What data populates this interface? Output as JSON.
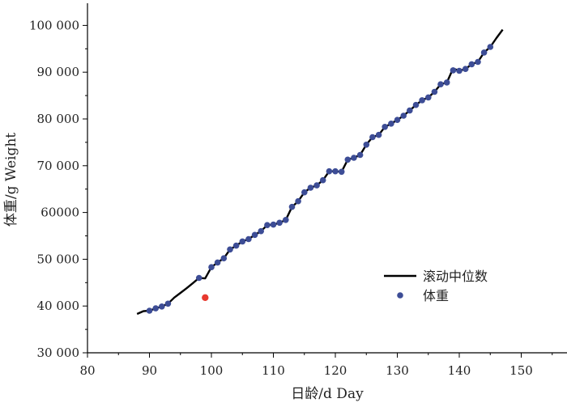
{
  "colors": {
    "median_line": "#000000",
    "weight_points": "#3d4d96",
    "outlier_point": "#e8392e",
    "axis": "#000000"
  },
  "chart_data": {
    "type": "scatter",
    "xlabel": "日龄/d Day",
    "ylabel": "体重/g Weight",
    "xlim": [
      80,
      155
    ],
    "ylim": [
      30000,
      103000
    ],
    "x_ticks": [
      80,
      90,
      100,
      110,
      120,
      130,
      140,
      150
    ],
    "x_tick_labels": [
      "80",
      "90",
      "100",
      "110",
      "120",
      "130",
      "140",
      "150"
    ],
    "y_ticks": [
      30000,
      40000,
      50000,
      60000,
      70000,
      80000,
      90000,
      100000
    ],
    "y_tick_labels": [
      "30 000",
      "40 000",
      "50 000",
      "60000",
      "70 000",
      "80 000",
      "90 000",
      "100 000"
    ],
    "legend_position": "lower-right",
    "series": [
      {
        "name": "滚动中位数",
        "type": "line",
        "points": [
          [
            88,
            38300
          ],
          [
            89,
            38900
          ],
          [
            90,
            39000
          ],
          [
            91,
            39500
          ],
          [
            92,
            39900
          ],
          [
            93,
            40500
          ],
          [
            94,
            41800
          ],
          [
            95,
            42800
          ],
          [
            96,
            43800
          ],
          [
            97,
            44900
          ],
          [
            98,
            46000
          ],
          [
            99,
            45900
          ],
          [
            100,
            48300
          ],
          [
            101,
            49300
          ],
          [
            102,
            50200
          ],
          [
            103,
            52100
          ],
          [
            104,
            52900
          ],
          [
            105,
            53800
          ],
          [
            106,
            54300
          ],
          [
            107,
            55200
          ],
          [
            108,
            56000
          ],
          [
            109,
            57300
          ],
          [
            110,
            57400
          ],
          [
            111,
            57800
          ],
          [
            112,
            58400
          ],
          [
            113,
            61200
          ],
          [
            114,
            62400
          ],
          [
            115,
            64300
          ],
          [
            116,
            65300
          ],
          [
            117,
            65800
          ],
          [
            118,
            66900
          ],
          [
            119,
            68800
          ],
          [
            120,
            68800
          ],
          [
            121,
            68700
          ],
          [
            122,
            71300
          ],
          [
            123,
            71700
          ],
          [
            124,
            72300
          ],
          [
            125,
            74500
          ],
          [
            126,
            76100
          ],
          [
            127,
            76600
          ],
          [
            128,
            78300
          ],
          [
            129,
            79000
          ],
          [
            130,
            79800
          ],
          [
            131,
            80700
          ],
          [
            132,
            81800
          ],
          [
            133,
            83000
          ],
          [
            134,
            84000
          ],
          [
            135,
            84600
          ],
          [
            136,
            85800
          ],
          [
            137,
            87400
          ],
          [
            138,
            87800
          ],
          [
            139,
            90800
          ],
          [
            140,
            90300
          ],
          [
            141,
            90700
          ],
          [
            142,
            91700
          ],
          [
            143,
            92200
          ],
          [
            144,
            94200
          ],
          [
            145,
            95400
          ],
          [
            146,
            97300
          ],
          [
            147,
            99100
          ]
        ]
      },
      {
        "name": "体重",
        "type": "scatter",
        "points": [
          [
            90,
            39000
          ],
          [
            91,
            39500
          ],
          [
            92,
            39900
          ],
          [
            93,
            40500
          ],
          [
            98,
            46000
          ],
          [
            100,
            48300
          ],
          [
            101,
            49300
          ],
          [
            102,
            50200
          ],
          [
            103,
            52100
          ],
          [
            104,
            52900
          ],
          [
            105,
            53800
          ],
          [
            106,
            54300
          ],
          [
            107,
            55200
          ],
          [
            108,
            56000
          ],
          [
            109,
            57300
          ],
          [
            110,
            57400
          ],
          [
            111,
            57800
          ],
          [
            112,
            58400
          ],
          [
            113,
            61200
          ],
          [
            114,
            62400
          ],
          [
            115,
            64300
          ],
          [
            116,
            65300
          ],
          [
            117,
            65800
          ],
          [
            118,
            66900
          ],
          [
            119,
            68800
          ],
          [
            120,
            68800
          ],
          [
            121,
            68700
          ],
          [
            122,
            71300
          ],
          [
            123,
            71700
          ],
          [
            124,
            72300
          ],
          [
            125,
            74500
          ],
          [
            126,
            76100
          ],
          [
            127,
            76600
          ],
          [
            128,
            78300
          ],
          [
            129,
            79000
          ],
          [
            130,
            79800
          ],
          [
            131,
            80700
          ],
          [
            132,
            81800
          ],
          [
            133,
            83000
          ],
          [
            134,
            84000
          ],
          [
            135,
            84600
          ],
          [
            136,
            85800
          ],
          [
            137,
            87400
          ],
          [
            138,
            87800
          ],
          [
            139,
            90400
          ],
          [
            140,
            90300
          ],
          [
            141,
            90700
          ],
          [
            142,
            91700
          ],
          [
            143,
            92200
          ],
          [
            144,
            94200
          ],
          [
            145,
            95400
          ]
        ]
      }
    ],
    "outliers": [
      [
        99,
        41800
      ]
    ]
  }
}
